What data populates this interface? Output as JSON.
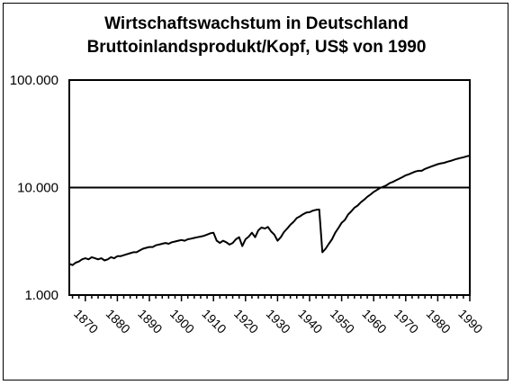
{
  "chart_data": {
    "type": "line",
    "title": [
      "Wirtschaftswachstum in Deutschland",
      "Bruttoinlandsprodukt/Kopf, US$ von 1990"
    ],
    "xlabel": "",
    "ylabel": "",
    "y_scale": "log",
    "ylim": [
      1000,
      100000
    ],
    "xlim": [
      1865,
      1990
    ],
    "y_ticks": [
      1000,
      10000,
      100000
    ],
    "y_tick_labels": [
      "1.000",
      "10.000",
      "100.000"
    ],
    "x_ticks": [
      1870,
      1880,
      1890,
      1900,
      1910,
      1920,
      1930,
      1940,
      1950,
      1960,
      1970,
      1980,
      1990
    ],
    "x_tick_labels": [
      "1870",
      "1880",
      "1890",
      "1900",
      "1910",
      "1920",
      "1930",
      "1940",
      "1950",
      "1960",
      "1970",
      "1980",
      "1990"
    ],
    "grid": "horizontal at 10.000 and 100.000",
    "legend": "none",
    "series": [
      {
        "color": "#000000",
        "x": [
          1865,
          1866,
          1867,
          1868,
          1869,
          1870,
          1871,
          1872,
          1873,
          1874,
          1875,
          1876,
          1877,
          1878,
          1879,
          1880,
          1881,
          1882,
          1883,
          1884,
          1885,
          1886,
          1887,
          1888,
          1889,
          1890,
          1891,
          1892,
          1893,
          1894,
          1895,
          1896,
          1897,
          1898,
          1899,
          1900,
          1901,
          1902,
          1903,
          1904,
          1905,
          1906,
          1907,
          1908,
          1909,
          1910,
          1911,
          1912,
          1913,
          1914,
          1915,
          1916,
          1917,
          1918,
          1919,
          1920,
          1921,
          1922,
          1923,
          1924,
          1925,
          1926,
          1927,
          1928,
          1929,
          1930,
          1931,
          1932,
          1933,
          1934,
          1935,
          1936,
          1937,
          1938,
          1939,
          1940,
          1941,
          1942,
          1943,
          1944,
          1945,
          1946,
          1947,
          1948,
          1949,
          1950,
          1951,
          1952,
          1953,
          1954,
          1955,
          1956,
          1957,
          1958,
          1959,
          1960,
          1961,
          1962,
          1963,
          1964,
          1965,
          1966,
          1967,
          1968,
          1969,
          1970,
          1971,
          1972,
          1973,
          1974,
          1975,
          1976,
          1977,
          1978,
          1979,
          1980,
          1981,
          1982,
          1983,
          1984,
          1985,
          1986,
          1987,
          1988,
          1989,
          1990
        ],
        "values": [
          1950,
          1900,
          2000,
          2050,
          2150,
          2200,
          2150,
          2250,
          2200,
          2150,
          2200,
          2100,
          2150,
          2250,
          2200,
          2300,
          2300,
          2350,
          2400,
          2450,
          2500,
          2500,
          2600,
          2700,
          2750,
          2800,
          2800,
          2900,
          2950,
          3000,
          3050,
          3000,
          3100,
          3150,
          3200,
          3250,
          3200,
          3300,
          3350,
          3400,
          3450,
          3500,
          3550,
          3650,
          3750,
          3800,
          3200,
          3050,
          3200,
          3100,
          2950,
          3050,
          3300,
          3450,
          2850,
          3300,
          3500,
          3800,
          3450,
          4000,
          4250,
          4150,
          4300,
          3900,
          3650,
          3200,
          3450,
          3850,
          4150,
          4500,
          4800,
          5200,
          5400,
          5650,
          5850,
          5900,
          6100,
          6200,
          6250,
          2500,
          2700,
          3000,
          3300,
          3800,
          4200,
          4700,
          5000,
          5600,
          6000,
          6500,
          6800,
          7300,
          7700,
          8200,
          8600,
          9100,
          9500,
          9900,
          10200,
          10500,
          11000,
          11300,
          11700,
          12100,
          12500,
          13000,
          13300,
          13700,
          14100,
          14300,
          14300,
          14900,
          15300,
          15700,
          16100,
          16500,
          16800,
          17000,
          17400,
          17700,
          18100,
          18500,
          18800,
          19100,
          19500,
          19800
        ]
      }
    ]
  }
}
